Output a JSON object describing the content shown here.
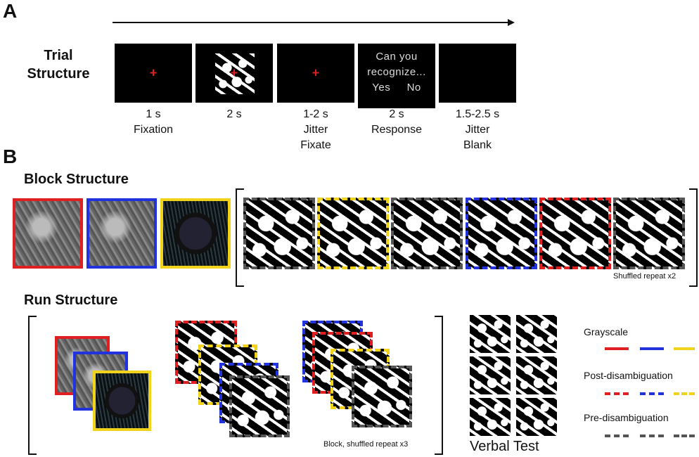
{
  "panels": {
    "a": "A",
    "b": "B"
  },
  "trial": {
    "title_line1": "Trial",
    "title_line2": "Structure",
    "fixation_symbol": "+",
    "response_text_line1": "Can you",
    "response_text_line2": "recognize...",
    "response_yes": "Yes",
    "response_no": "No",
    "steps": [
      {
        "line1": "1 s",
        "line2": "Fixation",
        "line3": ""
      },
      {
        "line1": "2 s",
        "line2": "",
        "line3": ""
      },
      {
        "line1": "1-2 s",
        "line2": "Jitter",
        "line3": "Fixate"
      },
      {
        "line1": "2 s",
        "line2": "Response",
        "line3": ""
      },
      {
        "line1": "1.5-2.5 s",
        "line2": "Jitter",
        "line3": "Blank"
      }
    ]
  },
  "block": {
    "title": "Block Structure",
    "repeat_label": "Shuffled repeat x2"
  },
  "run": {
    "title": "Run Structure",
    "repeat_label": "Block, shuffled repeat x3",
    "verbal_test": "Verbal Test"
  },
  "legend": {
    "items": [
      {
        "label": "Grayscale",
        "style": "solid"
      },
      {
        "label": "Post-disambiguation",
        "style": "dashed"
      },
      {
        "label": "Pre-disambiguation",
        "style": "dashed"
      }
    ],
    "colors": {
      "red": "#e02020",
      "blue": "#2233dd",
      "yellow": "#f2d31c",
      "gray": "#555555"
    }
  }
}
